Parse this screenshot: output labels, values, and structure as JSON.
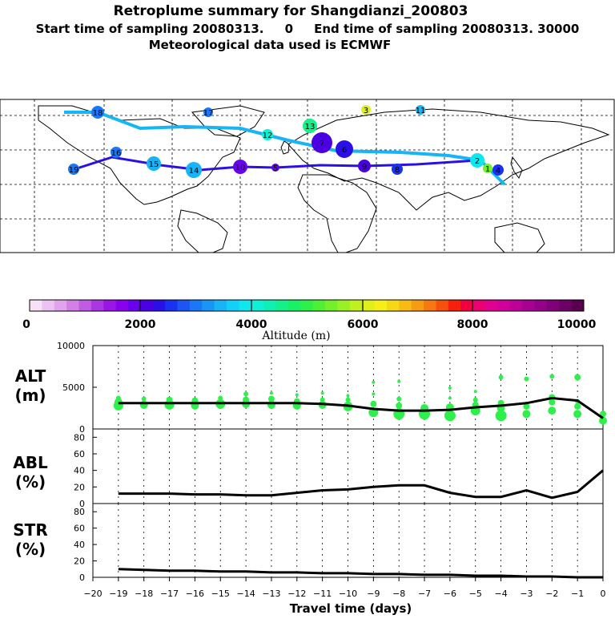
{
  "header": {
    "title": "Retroplume summary for Shangdianzi_200803",
    "subtitle": "Start time of sampling 20080313.     0     End time of sampling 20080313. 30000",
    "met": "Meteorological data used is ECMWF"
  },
  "colorbar": {
    "label": "Altitude (m)",
    "ticks": [
      "0",
      "2000",
      "4000",
      "6000",
      "8000",
      "10000"
    ],
    "stops": [
      "#f6e1f6",
      "#ecc3f0",
      "#e0a3ec",
      "#d27fe6",
      "#c05ce2",
      "#ab37e2",
      "#9a15e6",
      "#8a00ee",
      "#6a00ee",
      "#4b00e2",
      "#2a10e6",
      "#1a32f0",
      "#1b55f4",
      "#1a78f6",
      "#1896f6",
      "#17b4f6",
      "#12d0f6",
      "#10e6ee",
      "#0ff0d6",
      "#10f0b2",
      "#14f08a",
      "#18f066",
      "#2ef04a",
      "#4ef036",
      "#74f02a",
      "#9af024",
      "#c0f020",
      "#e0f01c",
      "#f6ee18",
      "#f6d816",
      "#f6bc14",
      "#f69c12",
      "#f67810",
      "#f6500e",
      "#f6200c",
      "#f00040",
      "#ea0070",
      "#e00090",
      "#d0009a",
      "#bc0098",
      "#a80090",
      "#940088",
      "#800078",
      "#6c0066",
      "#58004e"
    ]
  },
  "map": {
    "points": [
      {
        "label": "18",
        "alt": 3000
      },
      {
        "label": "19",
        "alt": 3000
      },
      {
        "label": "17",
        "alt": 3000
      },
      {
        "label": "16",
        "alt": 3000
      },
      {
        "label": "15",
        "alt": 3500
      },
      {
        "label": "14",
        "alt": 3500
      },
      {
        "label": "13",
        "alt": 4500
      },
      {
        "label": "12",
        "alt": 4000
      },
      {
        "label": "11",
        "alt": 3500
      },
      {
        "label": "10",
        "alt": 1800
      },
      {
        "label": "9",
        "alt": 2000
      },
      {
        "label": "8",
        "alt": 2500
      },
      {
        "label": "7",
        "alt": 2200
      },
      {
        "label": "6",
        "alt": 2300
      },
      {
        "label": "5",
        "alt": 1800
      },
      {
        "label": "4",
        "alt": 2500
      },
      {
        "label": "3",
        "alt": 6200
      },
      {
        "label": "2",
        "alt": 3800
      },
      {
        "label": "1",
        "alt": 5500
      }
    ]
  },
  "chart_data": [
    {
      "type": "scatter",
      "ylabel": "ALT (m)",
      "ylim": [
        0,
        10000
      ],
      "yticks": [
        "10000",
        "5000",
        "0"
      ],
      "median": {
        "x": [
          -19,
          -18,
          -17,
          -16,
          -15,
          -14,
          -13,
          -12,
          -11,
          -10,
          -9,
          -8,
          -7,
          -6,
          -5,
          -4,
          -3,
          -2,
          -1,
          0
        ],
        "y": [
          3100,
          3100,
          3100,
          3100,
          3100,
          3100,
          3100,
          3100,
          3000,
          2800,
          2400,
          2200,
          2200,
          2300,
          2600,
          2800,
          3100,
          3700,
          3400,
          1300
        ]
      },
      "points": [
        {
          "x": -19,
          "y": 2800,
          "r": 6
        },
        {
          "x": -19,
          "y": 3200,
          "r": 5
        },
        {
          "x": -19,
          "y": 3700,
          "r": 3
        },
        {
          "x": -18,
          "y": 2900,
          "r": 5
        },
        {
          "x": -18,
          "y": 3600,
          "r": 3
        },
        {
          "x": -17,
          "y": 2900,
          "r": 6
        },
        {
          "x": -17,
          "y": 3500,
          "r": 4
        },
        {
          "x": -16,
          "y": 2800,
          "r": 5
        },
        {
          "x": -16,
          "y": 3400,
          "r": 4
        },
        {
          "x": -15,
          "y": 3000,
          "r": 6
        },
        {
          "x": -15,
          "y": 3700,
          "r": 3
        },
        {
          "x": -14,
          "y": 3000,
          "r": 5
        },
        {
          "x": -14,
          "y": 3500,
          "r": 4
        },
        {
          "x": -14,
          "y": 4200,
          "r": 3
        },
        {
          "x": -13,
          "y": 2900,
          "r": 5
        },
        {
          "x": -13,
          "y": 3600,
          "r": 4
        },
        {
          "x": -13,
          "y": 4300,
          "r": 2
        },
        {
          "x": -12,
          "y": 2800,
          "r": 5
        },
        {
          "x": -12,
          "y": 3300,
          "r": 4
        },
        {
          "x": -12,
          "y": 4100,
          "r": 2
        },
        {
          "x": -11,
          "y": 2900,
          "r": 5
        },
        {
          "x": -11,
          "y": 3500,
          "r": 3
        },
        {
          "x": -11,
          "y": 4300,
          "r": 2
        },
        {
          "x": -10,
          "y": 2700,
          "r": 6
        },
        {
          "x": -10,
          "y": 3500,
          "r": 3
        },
        {
          "x": -10,
          "y": 4000,
          "r": 2
        },
        {
          "x": -9,
          "y": 2000,
          "r": 6
        },
        {
          "x": -9,
          "y": 3000,
          "r": 4
        },
        {
          "x": -9,
          "y": 4200,
          "r": 2
        },
        {
          "x": -9,
          "y": 5600,
          "r": 2
        },
        {
          "x": -8,
          "y": 1800,
          "r": 7
        },
        {
          "x": -8,
          "y": 2800,
          "r": 4
        },
        {
          "x": -8,
          "y": 3600,
          "r": 3
        },
        {
          "x": -8,
          "y": 5700,
          "r": 2
        },
        {
          "x": -7,
          "y": 1800,
          "r": 7
        },
        {
          "x": -7,
          "y": 2500,
          "r": 5
        },
        {
          "x": -6,
          "y": 1600,
          "r": 7
        },
        {
          "x": -6,
          "y": 2600,
          "r": 5
        },
        {
          "x": -6,
          "y": 3700,
          "r": 2
        },
        {
          "x": -6,
          "y": 4900,
          "r": 2
        },
        {
          "x": -5,
          "y": 2200,
          "r": 6
        },
        {
          "x": -5,
          "y": 2900,
          "r": 4
        },
        {
          "x": -5,
          "y": 3500,
          "r": 3
        },
        {
          "x": -5,
          "y": 4500,
          "r": 2
        },
        {
          "x": -4,
          "y": 1600,
          "r": 7
        },
        {
          "x": -4,
          "y": 2500,
          "r": 5
        },
        {
          "x": -4,
          "y": 3100,
          "r": 4
        },
        {
          "x": -4,
          "y": 6200,
          "r": 3
        },
        {
          "x": -3,
          "y": 1800,
          "r": 5
        },
        {
          "x": -3,
          "y": 2700,
          "r": 4
        },
        {
          "x": -3,
          "y": 6000,
          "r": 3
        },
        {
          "x": -2,
          "y": 2200,
          "r": 5
        },
        {
          "x": -2,
          "y": 3200,
          "r": 4
        },
        {
          "x": -2,
          "y": 3800,
          "r": 4
        },
        {
          "x": -2,
          "y": 6300,
          "r": 3
        },
        {
          "x": -1,
          "y": 1800,
          "r": 5
        },
        {
          "x": -1,
          "y": 2700,
          "r": 4
        },
        {
          "x": -1,
          "y": 3300,
          "r": 3
        },
        {
          "x": -1,
          "y": 6200,
          "r": 4
        },
        {
          "x": 0,
          "y": 1000,
          "r": 5
        },
        {
          "x": 0,
          "y": 1800,
          "r": 4
        }
      ]
    },
    {
      "type": "line",
      "ylabel": "ABL (%)",
      "ylim": [
        0,
        90
      ],
      "yticks": [
        "80",
        "60",
        "40",
        "20",
        "0"
      ],
      "x": [
        -19,
        -18,
        -17,
        -16,
        -15,
        -14,
        -13,
        -12,
        -11,
        -10,
        -9,
        -8,
        -7,
        -6,
        -5,
        -4,
        -3,
        -2,
        -1,
        0
      ],
      "y": [
        12,
        12,
        12,
        11,
        11,
        10,
        10,
        13,
        16,
        17,
        20,
        22,
        22,
        13,
        8,
        8,
        16,
        7,
        14,
        40
      ]
    },
    {
      "type": "line",
      "ylabel": "STR (%)",
      "ylim": [
        0,
        90
      ],
      "yticks": [
        "80",
        "60",
        "40",
        "20",
        "0"
      ],
      "x": [
        -19,
        -18,
        -17,
        -16,
        -15,
        -14,
        -13,
        -12,
        -11,
        -10,
        -9,
        -8,
        -7,
        -6,
        -5,
        -4,
        -3,
        -2,
        -1,
        0
      ],
      "y": [
        10,
        9,
        8,
        8,
        7,
        7,
        6,
        6,
        5,
        5,
        4,
        4,
        3,
        3,
        2,
        2,
        1,
        1,
        0,
        0
      ]
    }
  ],
  "xaxis": {
    "label": "Travel time (days)",
    "ticks": [
      "−20",
      "−19",
      "−18",
      "−17",
      "−16",
      "−15",
      "−14",
      "−13",
      "−12",
      "−11",
      "−10",
      "−9",
      "−8",
      "−7",
      "−6",
      "−5",
      "−4",
      "−3",
      "−2",
      "−1",
      "0"
    ]
  },
  "panel_labels": {
    "alt": [
      "ALT",
      "(m)"
    ],
    "abl": [
      "ABL",
      "(%)"
    ],
    "str": [
      "STR",
      "(%)"
    ]
  }
}
